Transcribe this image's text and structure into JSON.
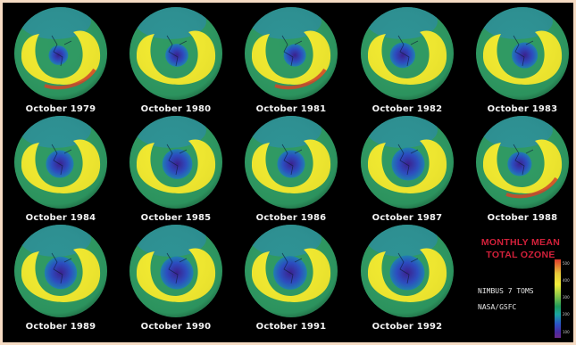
{
  "maps": [
    {
      "label": "October 1979",
      "hole": 0.28,
      "hole_shift": -0.05,
      "red_band": true
    },
    {
      "label": "October 1980",
      "hole": 0.4,
      "hole_shift": 0.02,
      "red_band": false
    },
    {
      "label": "October 1981",
      "hole": 0.38,
      "hole_shift": 0.08,
      "red_band": true
    },
    {
      "label": "October 1982",
      "hole": 0.48,
      "hole_shift": -0.1,
      "red_band": false
    },
    {
      "label": "October 1983",
      "hole": 0.5,
      "hole_shift": 0.05,
      "red_band": false
    },
    {
      "label": "October 1984",
      "hole": 0.56,
      "hole_shift": -0.02,
      "red_band": false
    },
    {
      "label": "October 1985",
      "hole": 0.64,
      "hole_shift": 0.03,
      "red_band": false
    },
    {
      "label": "October 1986",
      "hole": 0.56,
      "hole_shift": 0.0,
      "red_band": false
    },
    {
      "label": "October 1987",
      "hole": 0.74,
      "hole_shift": 0.02,
      "red_band": false
    },
    {
      "label": "October 1988",
      "hole": 0.44,
      "hole_shift": -0.06,
      "red_band": true
    },
    {
      "label": "October 1989",
      "hole": 0.72,
      "hole_shift": 0.0,
      "red_band": false
    },
    {
      "label": "October 1990",
      "hole": 0.74,
      "hole_shift": 0.02,
      "red_band": false
    },
    {
      "label": "October 1991",
      "hole": 0.76,
      "hole_shift": -0.02,
      "red_band": false
    },
    {
      "label": "October 1992",
      "hole": 0.8,
      "hole_shift": 0.0,
      "red_band": false
    }
  ],
  "legend": {
    "title_line1": "MONTHLY MEAN",
    "title_line2": "TOTAL OZONE",
    "instrument": "NIMBUS 7 TOMS",
    "source": "NASA/GSFC",
    "ticks": [
      "500",
      "400",
      "300",
      "200",
      "100"
    ]
  },
  "colors": {
    "background": "#000000",
    "globe_green": "#2e9a62",
    "ozone_high": "#f2ea2e",
    "ozone_peak": "#d8452a",
    "hole_blue": "#2a4cc0",
    "hole_core": "#3a1e8c",
    "caption": "#f2f2f2",
    "legend_title": "#d2203a"
  }
}
